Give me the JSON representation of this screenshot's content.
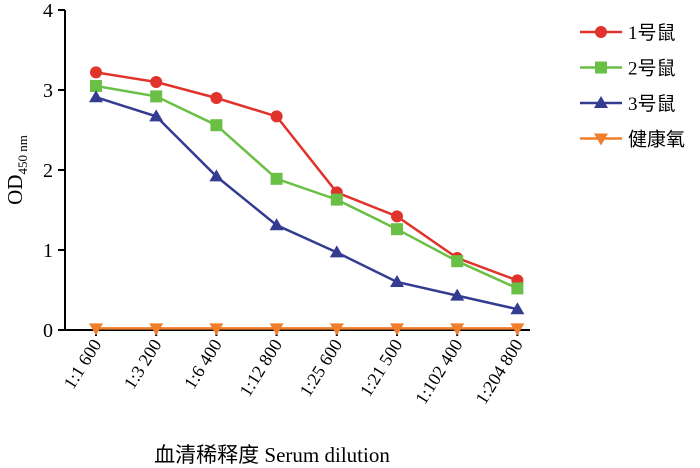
{
  "chart_data": {
    "type": "line",
    "ylabel": "OD",
    "ylabel_sub": "450 nm",
    "xlabel": "血清稀释度  Serum dilution",
    "categories": [
      "1:1 600",
      "1:3 200",
      "1:6 400",
      "1:12 800",
      "1:25 600",
      "1:21 500",
      "1:102 400",
      "1:204 800"
    ],
    "series": [
      {
        "name": "1号鼠",
        "color": "#e0332b",
        "marker": "circle",
        "values": [
          3.22,
          3.1,
          2.9,
          2.67,
          1.72,
          1.42,
          0.9,
          0.62
        ]
      },
      {
        "name": "2号鼠",
        "color": "#6abf45",
        "marker": "square",
        "values": [
          3.05,
          2.92,
          2.56,
          1.89,
          1.63,
          1.26,
          0.86,
          0.52
        ]
      },
      {
        "name": "3号鼠",
        "color": "#343c91",
        "marker": "triangle-up",
        "values": [
          2.91,
          2.67,
          1.92,
          1.31,
          0.97,
          0.6,
          0.43,
          0.26
        ]
      },
      {
        "name": "健康氧",
        "color": "#f07e2b",
        "marker": "triangle-down",
        "values": [
          0.02,
          0.02,
          0.02,
          0.02,
          0.02,
          0.02,
          0.02,
          0.02
        ]
      }
    ],
    "ylim": [
      0,
      4
    ],
    "yticks": [
      0,
      1,
      2,
      3,
      4
    ],
    "legend": "right"
  }
}
